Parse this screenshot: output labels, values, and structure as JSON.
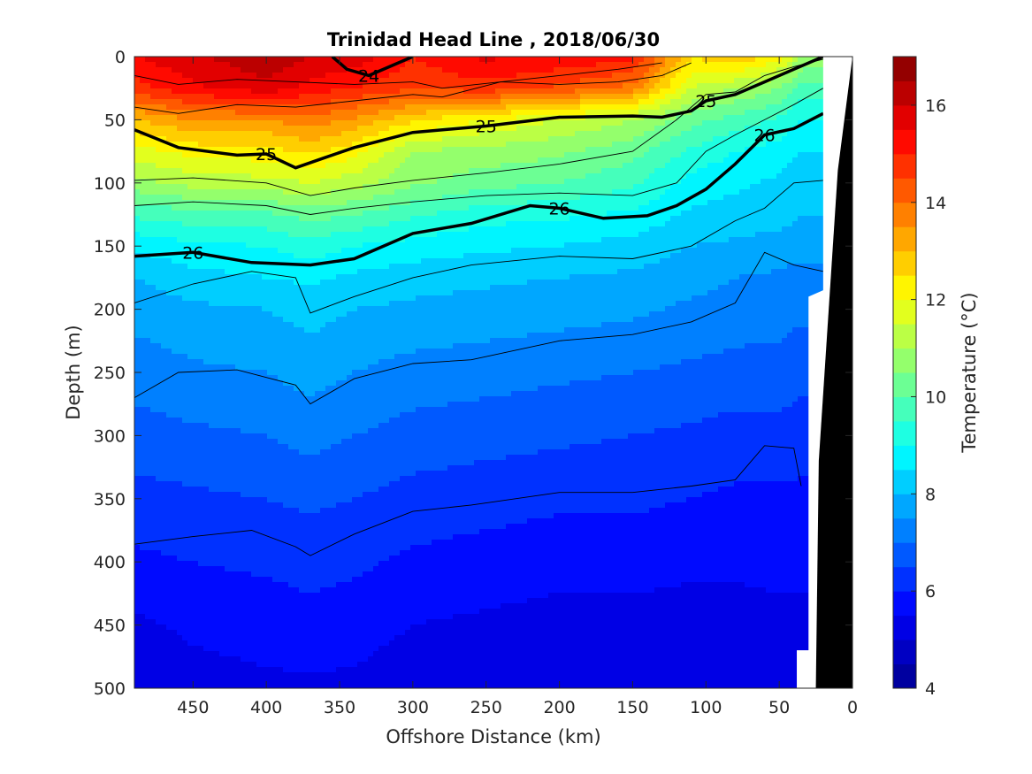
{
  "chart_data": {
    "type": "heatmap",
    "title": "Trinidad Head Line , 2018/06/30",
    "xlabel": "Offshore Distance (km)",
    "ylabel": "Depth (m)",
    "x_reversed": true,
    "y_reversed": true,
    "xlim": [
      490,
      0
    ],
    "ylim": [
      0,
      500
    ],
    "xticks": [
      "450",
      "400",
      "350",
      "300",
      "250",
      "200",
      "150",
      "100",
      "50",
      "0"
    ],
    "yticks": [
      "0",
      "50",
      "100",
      "150",
      "200",
      "250",
      "300",
      "350",
      "400",
      "450",
      "500"
    ],
    "colorbar": {
      "label": "Temperature (°C)",
      "range": [
        4,
        17
      ],
      "ticks": [
        "4",
        "6",
        "8",
        "10",
        "12",
        "14",
        "16"
      ],
      "colormap": [
        "#00008f",
        "#0000ff",
        "#0080ff",
        "#00ffff",
        "#80ff80",
        "#ffff00",
        "#ff8000",
        "#ff0000",
        "#800000"
      ]
    },
    "x": [
      490,
      450,
      400,
      370,
      340,
      300,
      250,
      200,
      150,
      110,
      80,
      50,
      35
    ],
    "depth_levels": [
      0,
      25,
      50,
      75,
      100,
      125,
      150,
      175,
      200,
      250,
      300,
      350,
      400,
      450,
      500
    ],
    "temperature": [
      [
        15.5,
        15.9,
        16.4,
        16.0,
        15.8,
        15.0,
        15.6,
        15.4,
        15.2,
        12.5,
        13.0,
        12.2,
        11.0
      ],
      [
        14.8,
        15.4,
        15.8,
        15.3,
        15.0,
        14.6,
        14.8,
        14.4,
        13.8,
        11.5,
        11.0,
        10.5,
        9.8
      ],
      [
        13.0,
        13.5,
        13.5,
        13.8,
        13.4,
        12.6,
        12.0,
        11.5,
        11.0,
        10.2,
        9.8,
        9.4,
        9.0
      ],
      [
        11.8,
        12.2,
        12.3,
        12.6,
        12.2,
        11.0,
        10.8,
        10.6,
        10.2,
        9.4,
        9.0,
        8.8,
        8.5
      ],
      [
        10.8,
        11.2,
        11.3,
        11.5,
        11.2,
        10.6,
        10.2,
        10.0,
        9.6,
        8.8,
        8.6,
        8.4,
        8.2
      ],
      [
        9.6,
        9.8,
        9.9,
        10.2,
        10.0,
        9.6,
        9.2,
        9.1,
        8.9,
        8.4,
        8.3,
        8.2,
        8.0
      ],
      [
        8.6,
        8.9,
        9.0,
        9.3,
        9.0,
        8.8,
        8.6,
        8.5,
        8.3,
        8.0,
        7.9,
        7.8,
        7.7
      ],
      [
        8.0,
        8.3,
        8.5,
        8.6,
        8.4,
        8.2,
        8.1,
        8.0,
        7.9,
        7.7,
        7.5,
        7.4,
        7.3
      ],
      [
        7.7,
        7.9,
        8.0,
        8.2,
        8.0,
        7.9,
        7.8,
        7.7,
        7.6,
        7.4,
        7.3,
        7.2,
        7.1
      ],
      [
        7.2,
        7.4,
        7.5,
        7.7,
        7.5,
        7.3,
        7.2,
        7.1,
        7.0,
        6.9,
        6.8,
        6.8,
        6.7
      ],
      [
        6.8,
        6.9,
        7.0,
        7.2,
        7.0,
        6.8,
        6.7,
        6.6,
        6.5,
        6.4,
        6.3,
        6.3,
        6.2
      ],
      [
        6.3,
        6.4,
        6.5,
        6.6,
        6.5,
        6.3,
        6.2,
        6.1,
        6.1,
        6.0,
        5.9,
        5.9,
        5.9
      ],
      [
        5.9,
        6.0,
        6.1,
        6.2,
        6.1,
        5.9,
        5.8,
        5.7,
        5.7,
        5.6,
        5.6,
        5.6,
        5.6
      ],
      [
        5.4,
        5.6,
        5.7,
        5.8,
        5.7,
        5.5,
        5.4,
        5.3,
        5.3,
        5.3,
        5.3,
        5.4,
        5.4
      ],
      [
        5.0,
        5.3,
        5.4,
        5.4,
        5.4,
        5.2,
        5.1,
        5.0,
        5.0,
        5.1,
        5.2,
        5.3,
        5.3
      ]
    ],
    "density_contours": {
      "thin": [
        [
          [
            490,
            15
          ],
          [
            460,
            22
          ],
          [
            420,
            18
          ],
          [
            380,
            20
          ],
          [
            340,
            22
          ],
          [
            300,
            20
          ],
          [
            280,
            25
          ],
          [
            240,
            20
          ],
          [
            200,
            15
          ],
          [
            160,
            10
          ],
          [
            130,
            5
          ]
        ],
        [
          [
            490,
            40
          ],
          [
            460,
            45
          ],
          [
            420,
            38
          ],
          [
            380,
            40
          ],
          [
            340,
            35
          ],
          [
            300,
            30
          ],
          [
            280,
            32
          ],
          [
            240,
            20
          ],
          [
            200,
            22
          ],
          [
            160,
            20
          ],
          [
            130,
            15
          ],
          [
            110,
            5
          ]
        ],
        [
          [
            490,
            98
          ],
          [
            450,
            96
          ],
          [
            400,
            100
          ],
          [
            370,
            110
          ],
          [
            340,
            104
          ],
          [
            300,
            98
          ],
          [
            250,
            92
          ],
          [
            200,
            85
          ],
          [
            150,
            75
          ],
          [
            120,
            50
          ],
          [
            100,
            30
          ],
          [
            80,
            28
          ],
          [
            60,
            15
          ],
          [
            40,
            8
          ],
          [
            20,
            2
          ]
        ],
        [
          [
            490,
            118
          ],
          [
            450,
            115
          ],
          [
            400,
            118
          ],
          [
            370,
            125
          ],
          [
            340,
            120
          ],
          [
            300,
            115
          ],
          [
            250,
            110
          ],
          [
            200,
            108
          ],
          [
            150,
            110
          ],
          [
            120,
            100
          ],
          [
            100,
            75
          ],
          [
            80,
            62
          ],
          [
            60,
            50
          ],
          [
            40,
            38
          ],
          [
            20,
            25
          ]
        ],
        [
          [
            490,
            195
          ],
          [
            450,
            180
          ],
          [
            410,
            170
          ],
          [
            380,
            175
          ],
          [
            370,
            203
          ],
          [
            340,
            190
          ],
          [
            300,
            175
          ],
          [
            260,
            165
          ],
          [
            200,
            158
          ],
          [
            150,
            160
          ],
          [
            110,
            150
          ],
          [
            80,
            130
          ],
          [
            60,
            120
          ],
          [
            40,
            100
          ],
          [
            20,
            98
          ]
        ],
        [
          [
            490,
            270
          ],
          [
            460,
            250
          ],
          [
            420,
            248
          ],
          [
            380,
            260
          ],
          [
            370,
            275
          ],
          [
            340,
            255
          ],
          [
            300,
            243
          ],
          [
            260,
            240
          ],
          [
            200,
            225
          ],
          [
            150,
            220
          ],
          [
            110,
            210
          ],
          [
            80,
            195
          ],
          [
            60,
            155
          ],
          [
            40,
            165
          ],
          [
            20,
            170
          ]
        ],
        [
          [
            490,
            386
          ],
          [
            450,
            380
          ],
          [
            410,
            375
          ],
          [
            380,
            388
          ],
          [
            370,
            395
          ],
          [
            340,
            378
          ],
          [
            300,
            360
          ],
          [
            260,
            355
          ],
          [
            200,
            345
          ],
          [
            150,
            345
          ],
          [
            110,
            340
          ],
          [
            80,
            335
          ],
          [
            60,
            308
          ],
          [
            40,
            310
          ],
          [
            35,
            340
          ]
        ]
      ],
      "bold": [
        {
          "label": "24",
          "points": [
            [
              300,
              0
            ],
            [
              330,
              15
            ],
            [
              345,
              10
            ],
            [
              350,
              5
            ],
            [
              355,
              0
            ]
          ]
        },
        {
          "label": "25",
          "points": [
            [
              490,
              58
            ],
            [
              460,
              72
            ],
            [
              420,
              78
            ],
            [
              400,
              77
            ],
            [
              380,
              88
            ],
            [
              360,
              80
            ],
            [
              340,
              72
            ],
            [
              300,
              60
            ],
            [
              250,
              55
            ],
            [
              200,
              48
            ],
            [
              150,
              47
            ],
            [
              130,
              48
            ],
            [
              110,
              43
            ],
            [
              100,
              35
            ],
            [
              80,
              30
            ],
            [
              60,
              20
            ],
            [
              40,
              10
            ],
            [
              20,
              0
            ]
          ]
        },
        {
          "label": "26",
          "points": [
            [
              490,
              158
            ],
            [
              450,
              155
            ],
            [
              410,
              163
            ],
            [
              370,
              165
            ],
            [
              340,
              160
            ],
            [
              300,
              140
            ],
            [
              260,
              132
            ],
            [
              220,
              118
            ],
            [
              200,
              120
            ],
            [
              170,
              128
            ],
            [
              140,
              126
            ],
            [
              120,
              118
            ],
            [
              100,
              105
            ],
            [
              80,
              85
            ],
            [
              60,
              62
            ],
            [
              40,
              57
            ],
            [
              20,
              45
            ]
          ]
        }
      ]
    }
  }
}
